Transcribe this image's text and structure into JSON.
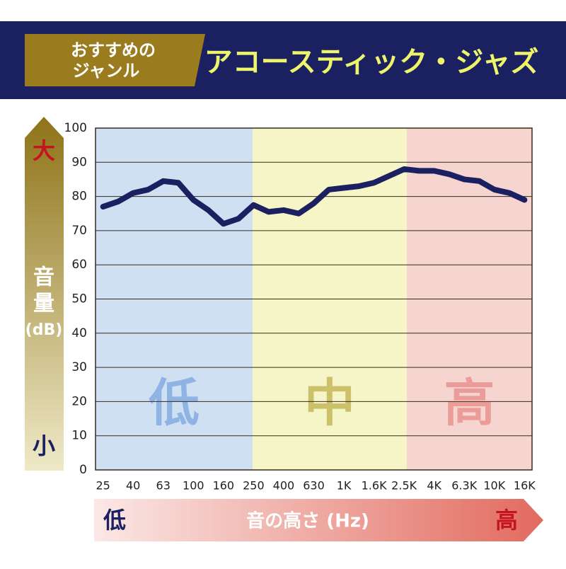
{
  "header": {
    "tag_lines": [
      "おすすめの",
      "ジャンル"
    ],
    "title": "アコースティック・ジャズ"
  },
  "chart_data": {
    "type": "line",
    "color": "#1b2060",
    "categories": [
      "25",
      null,
      "40",
      null,
      "63",
      null,
      "100",
      null,
      "160",
      null,
      "250",
      null,
      "400",
      null,
      "630",
      null,
      "1K",
      null,
      "1.6K",
      null,
      "2.5K",
      null,
      "4K",
      null,
      "6.3K",
      null,
      "10K",
      null,
      "16K"
    ],
    "values": [
      77,
      78.5,
      81,
      82,
      84.5,
      84,
      79,
      76,
      72,
      73.5,
      77.5,
      75.5,
      76,
      75,
      78,
      82,
      82.5,
      83,
      84,
      86,
      88,
      87.5,
      87.5,
      86.5,
      85,
      84.5,
      82,
      81,
      79
    ],
    "ylim": [
      0,
      100
    ],
    "yticks": [
      0,
      10,
      20,
      30,
      40,
      50,
      60,
      70,
      80,
      90,
      100
    ],
    "grid": true,
    "regions": [
      {
        "label": "低",
        "color": "#cfe0f3",
        "text_color": "#8fb4e4"
      },
      {
        "label": "中",
        "color": "#f5f5c8",
        "text_color": "#cdc06a"
      },
      {
        "label": "高",
        "color": "#f6d4d0",
        "text_color": "#ec9c98"
      }
    ],
    "y_axis": {
      "top": "大",
      "label": [
        "音",
        "量",
        "(dB)"
      ],
      "bottom": "小"
    },
    "x_axis": {
      "left": "低",
      "label": "音の高さ (Hz)",
      "right": "高"
    }
  }
}
